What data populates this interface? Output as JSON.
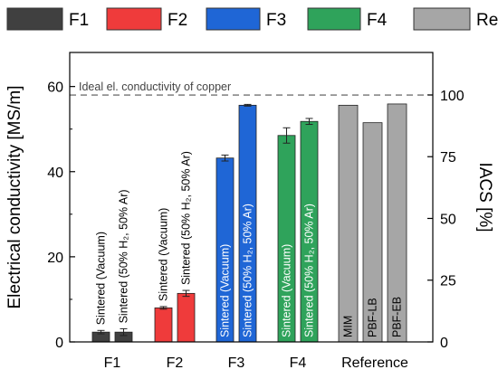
{
  "chart_data": {
    "type": "bar",
    "legend": {
      "position": "top",
      "entries": [
        {
          "name": "F1",
          "color": "#404040"
        },
        {
          "name": "F2",
          "color": "#ef3b3b"
        },
        {
          "name": "F3",
          "color": "#1f66d6"
        },
        {
          "name": "F4",
          "color": "#2fa35b"
        },
        {
          "name": "Reference",
          "color": "#a6a6a6"
        }
      ]
    },
    "categories": [
      "F1",
      "F2",
      "F3",
      "F4",
      "Reference"
    ],
    "ylabel": "Electrical conductivity [MS/m]",
    "ylabel_right": "IACS [%]",
    "ylim": [
      0,
      68
    ],
    "yticks": [
      0,
      20,
      40,
      60
    ],
    "y_right_lim": [
      0,
      117.2
    ],
    "y_right_ticks": [
      0,
      25,
      50,
      75,
      100
    ],
    "reference_line": {
      "value": 58.0,
      "label": "Ideal el. conductivity of copper"
    },
    "bars": [
      {
        "category": "F1",
        "label": "Sintered (Vacuum)",
        "value": 2.3,
        "error": 0.4,
        "color": "#404040",
        "label_color": "#000000"
      },
      {
        "category": "F1",
        "label": "Sintered (50% H₂, 50% Ar)",
        "value": 2.3,
        "error": 0.8,
        "color": "#404040",
        "label_color": "#000000"
      },
      {
        "category": "F2",
        "label": "Sintered (Vacuum)",
        "value": 8.0,
        "error": 0.3,
        "color": "#ef3b3b",
        "label_color": "#000000"
      },
      {
        "category": "F2",
        "label": "Sintered (50% H₂, 50% Ar)",
        "value": 11.4,
        "error": 0.7,
        "color": "#ef3b3b",
        "label_color": "#000000"
      },
      {
        "category": "F3",
        "label": "Sintered (Vacuum)",
        "value": 43.2,
        "error": 0.7,
        "color": "#1f66d6",
        "label_color": "#ffffff"
      },
      {
        "category": "F3",
        "label": "Sintered (50% H₂, 50% Ar)",
        "value": 55.6,
        "error": 0.2,
        "color": "#1f66d6",
        "label_color": "#ffffff"
      },
      {
        "category": "F4",
        "label": "Sintered (Vacuum)",
        "value": 48.5,
        "error": 1.8,
        "color": "#2fa35b",
        "label_color": "#ffffff"
      },
      {
        "category": "F4",
        "label": "Sintered (50% H₂, 50% Ar)",
        "value": 51.8,
        "error": 0.7,
        "color": "#2fa35b",
        "label_color": "#ffffff"
      },
      {
        "category": "Reference",
        "label": "MIM",
        "value": 55.6,
        "error": 0,
        "color": "#a6a6a6",
        "label_color": "#000000"
      },
      {
        "category": "Reference",
        "label": "PBF-LB",
        "value": 51.5,
        "error": 0,
        "color": "#a6a6a6",
        "label_color": "#000000"
      },
      {
        "category": "Reference",
        "label": "PBF-EB",
        "value": 55.9,
        "error": 0,
        "color": "#a6a6a6",
        "label_color": "#000000"
      }
    ]
  }
}
